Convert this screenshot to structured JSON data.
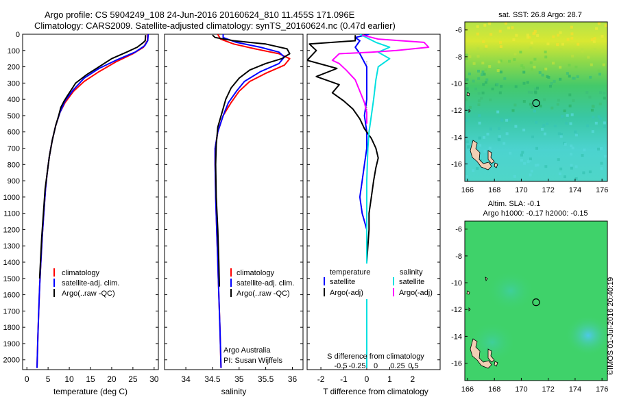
{
  "titles": {
    "line1": "Argo profile: CS 5904249_108 24-Jun-2016 20160624_810 11.455S 171.096E",
    "line2": "Climatology: CARS2009. Satellite-adjusted climatology: synTS_20160624.nc (0.47d earlier)"
  },
  "chart_data": [
    {
      "type": "line",
      "id": "temperature",
      "xlabel": "temperature (deg C)",
      "ylabel": "",
      "xlim": [
        -1,
        31
      ],
      "ylim": [
        2060,
        0
      ],
      "xticks": [
        0,
        5,
        10,
        15,
        20,
        25,
        30
      ],
      "yticks": [
        0,
        100,
        200,
        300,
        400,
        500,
        600,
        700,
        800,
        900,
        1000,
        1100,
        1200,
        1300,
        1400,
        1500,
        1600,
        1700,
        1800,
        1900,
        2000
      ],
      "legend": [
        "climatology",
        "satellite-adj. clim.",
        "Argo(..raw -QC)"
      ],
      "series": [
        {
          "name": "climatology",
          "color": "#ff0000",
          "points": [
            [
              28.5,
              0
            ],
            [
              28.4,
              40
            ],
            [
              27.5,
              80
            ],
            [
              25,
              120
            ],
            [
              21,
              170
            ],
            [
              17,
              230
            ],
            [
              13.5,
              290
            ],
            [
              11,
              350
            ],
            [
              9,
              420
            ],
            [
              7.8,
              480
            ],
            [
              6.8,
              560
            ],
            [
              6,
              650
            ],
            [
              5.3,
              750
            ],
            [
              4.8,
              850
            ],
            [
              4.4,
              950
            ],
            [
              4,
              1100
            ],
            [
              3.6,
              1250
            ],
            [
              3.3,
              1400
            ],
            [
              3,
              1550
            ],
            [
              2.8,
              1700
            ],
            [
              2.6,
              1850
            ],
            [
              2.4,
              2050
            ]
          ]
        },
        {
          "name": "satellite-adj. clim.",
          "color": "#0000ff",
          "points": [
            [
              28.6,
              0
            ],
            [
              28.5,
              40
            ],
            [
              27.8,
              70
            ],
            [
              25.5,
              110
            ],
            [
              21,
              160
            ],
            [
              17,
              210
            ],
            [
              13.5,
              270
            ],
            [
              11,
              340
            ],
            [
              9,
              410
            ],
            [
              7.8,
              480
            ],
            [
              6.8,
              560
            ],
            [
              6,
              650
            ],
            [
              5.3,
              750
            ],
            [
              4.8,
              850
            ],
            [
              4.4,
              950
            ],
            [
              4,
              1100
            ],
            [
              3.6,
              1250
            ],
            [
              3.3,
              1400
            ],
            [
              3,
              1550
            ],
            [
              2.8,
              1700
            ],
            [
              2.6,
              1850
            ],
            [
              2.4,
              2050
            ]
          ]
        },
        {
          "name": "Argo(..raw -QC)",
          "color": "#000000",
          "points": [
            [
              28,
              5
            ],
            [
              27.9,
              40
            ],
            [
              27.5,
              50
            ],
            [
              26,
              80
            ],
            [
              23.5,
              110
            ],
            [
              20,
              150
            ],
            [
              17,
              200
            ],
            [
              14,
              250
            ],
            [
              11.5,
              300
            ],
            [
              10.5,
              340
            ],
            [
              9.5,
              380
            ],
            [
              8.8,
              410
            ],
            [
              8,
              450
            ],
            [
              7.5,
              500
            ],
            [
              6.8,
              560
            ],
            [
              6,
              650
            ],
            [
              5.3,
              750
            ],
            [
              4.8,
              850
            ],
            [
              4.3,
              950
            ],
            [
              3.9,
              1100
            ],
            [
              3.5,
              1250
            ],
            [
              3.2,
              1400
            ],
            [
              3,
              1500
            ]
          ]
        }
      ]
    },
    {
      "type": "line",
      "id": "salinity",
      "xlabel": "salinity",
      "ylabel": "",
      "xlim": [
        33.6,
        36.2
      ],
      "ylim": [
        2060,
        0
      ],
      "xticks": [
        34,
        34.5,
        35,
        35.5,
        36
      ],
      "legend": [
        "climatology",
        "satellite-adj. clim.",
        "Argo(..raw -QC)"
      ],
      "annotations": [
        "Argo Australia",
        "PI: Susan Wijffels"
      ],
      "series": [
        {
          "name": "climatology",
          "color": "#ff0000",
          "points": [
            [
              34.6,
              0
            ],
            [
              34.65,
              30
            ],
            [
              34.9,
              60
            ],
            [
              35.3,
              90
            ],
            [
              35.75,
              120
            ],
            [
              35.95,
              150
            ],
            [
              35.85,
              190
            ],
            [
              35.5,
              240
            ],
            [
              35.2,
              290
            ],
            [
              35,
              350
            ],
            [
              34.85,
              420
            ],
            [
              34.7,
              500
            ],
            [
              34.6,
              600
            ],
            [
              34.55,
              700
            ],
            [
              34.55,
              800
            ],
            [
              34.56,
              1000
            ],
            [
              34.58,
              1200
            ],
            [
              34.6,
              1400
            ],
            [
              34.62,
              1600
            ],
            [
              34.64,
              1800
            ],
            [
              34.66,
              2050
            ]
          ]
        },
        {
          "name": "satellite-adj. clim.",
          "color": "#0000ff",
          "points": [
            [
              34.7,
              0
            ],
            [
              34.7,
              20
            ],
            [
              34.95,
              50
            ],
            [
              35.4,
              80
            ],
            [
              35.75,
              110
            ],
            [
              35.85,
              140
            ],
            [
              35.75,
              180
            ],
            [
              35.4,
              230
            ],
            [
              35.1,
              290
            ],
            [
              34.95,
              350
            ],
            [
              34.8,
              420
            ],
            [
              34.7,
              500
            ],
            [
              34.6,
              600
            ],
            [
              34.55,
              700
            ],
            [
              34.55,
              800
            ],
            [
              34.56,
              1000
            ],
            [
              34.58,
              1200
            ],
            [
              34.6,
              1400
            ],
            [
              34.62,
              1600
            ],
            [
              34.64,
              1800
            ],
            [
              34.66,
              2050
            ]
          ]
        },
        {
          "name": "Argo(..raw -QC)",
          "color": "#000000",
          "points": [
            [
              34.5,
              5
            ],
            [
              34.55,
              20
            ],
            [
              34.9,
              40
            ],
            [
              35.5,
              60
            ],
            [
              35.9,
              90
            ],
            [
              35.95,
              120
            ],
            [
              35.8,
              150
            ],
            [
              35.5,
              180
            ],
            [
              35.2,
              220
            ],
            [
              35,
              270
            ],
            [
              34.85,
              330
            ],
            [
              34.75,
              400
            ],
            [
              34.68,
              480
            ],
            [
              34.6,
              570
            ],
            [
              34.57,
              680
            ],
            [
              34.56,
              800
            ],
            [
              34.57,
              1000
            ],
            [
              34.6,
              1200
            ],
            [
              34.62,
              1400
            ],
            [
              34.63,
              1550
            ]
          ]
        }
      ]
    },
    {
      "type": "line",
      "id": "difference",
      "xlabel": "T difference from climatology",
      "xlabel_top": "S difference from climatology",
      "xlim": [
        -2.6,
        3.2
      ],
      "ylim": [
        2060,
        0
      ],
      "xticks_T": [
        -2,
        -1,
        0,
        1,
        2
      ],
      "xticks_S": [
        "-0.5",
        "-0.25",
        "0",
        "0.25",
        "0.5"
      ],
      "legend_titles": [
        "temperature",
        "salinity"
      ],
      "legend": [
        "satellite",
        "Argo(-adj)",
        "satellite",
        "Argo(-adj)"
      ],
      "series": [
        {
          "name": "satellite",
          "color": "#0000ff",
          "points": [
            [
              0.1,
              0
            ],
            [
              -0.5,
              20
            ],
            [
              -0.3,
              40
            ],
            [
              -0.5,
              80
            ],
            [
              -0.3,
              120
            ],
            [
              0,
              200
            ],
            [
              0,
              300
            ],
            [
              0,
              400
            ],
            [
              -0.1,
              500
            ],
            [
              0,
              600
            ],
            [
              0,
              700
            ],
            [
              -0.1,
              800
            ],
            [
              -0.2,
              900
            ],
            [
              -0.3,
              1000
            ],
            [
              -0.2,
              1100
            ],
            [
              0,
              1200
            ],
            [
              0,
              1500
            ],
            [
              0,
              1800
            ],
            [
              0,
              2050
            ]
          ]
        },
        {
          "name": "Argo(-adj)",
          "color": "#000000",
          "points": [
            [
              -0.5,
              5
            ],
            [
              -0.5,
              40
            ],
            [
              -2.5,
              60
            ],
            [
              -2.2,
              100
            ],
            [
              -2.6,
              160
            ],
            [
              -1.3,
              210
            ],
            [
              -2.2,
              260
            ],
            [
              -1.2,
              310
            ],
            [
              -1.5,
              360
            ],
            [
              -1,
              410
            ],
            [
              -0.6,
              460
            ],
            [
              -0.3,
              520
            ],
            [
              -0.1,
              580
            ],
            [
              0.2,
              640
            ],
            [
              0.4,
              700
            ],
            [
              0.5,
              760
            ],
            [
              0.4,
              820
            ],
            [
              0.3,
              900
            ],
            [
              0.2,
              1000
            ],
            [
              0.1,
              1100
            ],
            [
              0.1,
              1200
            ],
            [
              0,
              1400
            ],
            [
              0,
              1500
            ]
          ]
        },
        {
          "name": "satellite",
          "color": "#00e0e0",
          "points": [
            [
              -0.3,
              0
            ],
            [
              0.4,
              50
            ],
            [
              1,
              80
            ],
            [
              0.5,
              110
            ],
            [
              1,
              150
            ],
            [
              0.5,
              200
            ],
            [
              0.4,
              280
            ],
            [
              0.3,
              400
            ],
            [
              0.2,
              500
            ],
            [
              0.1,
              600
            ],
            [
              0.05,
              700
            ],
            [
              0,
              900
            ],
            [
              0,
              1200
            ],
            [
              0,
              1500
            ],
            [
              0,
              1800
            ],
            [
              0,
              2050
            ]
          ]
        },
        {
          "name": "Argo(-adj)",
          "color": "#ff00ff",
          "points": [
            [
              -0.2,
              5
            ],
            [
              0.5,
              30
            ],
            [
              2.5,
              50
            ],
            [
              2.7,
              80
            ],
            [
              1.3,
              100
            ],
            [
              0.2,
              110
            ],
            [
              -1.2,
              120
            ],
            [
              -1.5,
              160
            ],
            [
              -1.2,
              180
            ],
            [
              -0.9,
              220
            ],
            [
              -0.5,
              280
            ],
            [
              -0.3,
              350
            ],
            [
              -0.1,
              420
            ],
            [
              0,
              480
            ],
            [
              0,
              550
            ]
          ]
        }
      ]
    },
    {
      "type": "heatmap",
      "id": "sst-map",
      "title": "sat. SST: 26.8 Argo: 28.7",
      "xticks": [
        166,
        168,
        170,
        172,
        174,
        176
      ],
      "yticks": [
        -6,
        -8,
        -10,
        -12,
        -14,
        -16
      ],
      "marker": {
        "lon": 171.1,
        "lat": -11.46
      }
    },
    {
      "type": "heatmap",
      "id": "sla-map",
      "title_line1": "Altim. SLA: -0.1",
      "title_line2": "Argo h1000: -0.17 h2000: -0.15",
      "xticks": [
        166,
        168,
        170,
        172,
        174,
        176
      ],
      "yticks": [
        -6,
        -8,
        -10,
        -12,
        -14,
        -16
      ],
      "marker": {
        "lon": 171.1,
        "lat": -11.46
      }
    }
  ],
  "credit": "©IMOS 01-Jul-2016 20:40:19"
}
